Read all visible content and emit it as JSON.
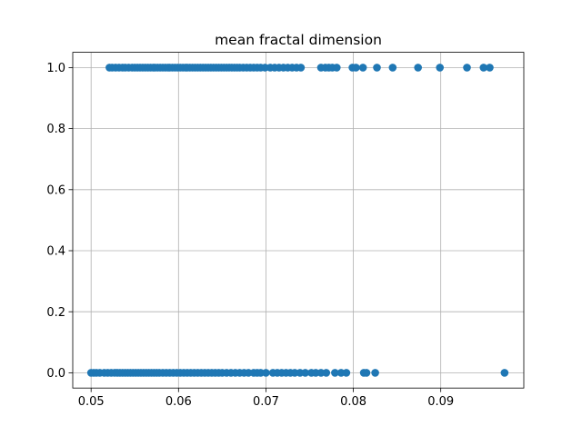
{
  "chart_data": {
    "type": "scatter",
    "title": "mean fractal dimension",
    "xlabel": "",
    "ylabel": "",
    "xlim": [
      0.0479,
      0.0995
    ],
    "ylim": [
      -0.05,
      1.05
    ],
    "grid": true,
    "color": "#1f77b4",
    "x_ticks": [
      {
        "value": 0.05,
        "label": "0.05"
      },
      {
        "value": 0.06,
        "label": "0.06"
      },
      {
        "value": 0.07,
        "label": "0.07"
      },
      {
        "value": 0.08,
        "label": "0.08"
      },
      {
        "value": 0.09,
        "label": "0.09"
      }
    ],
    "y_ticks": [
      {
        "value": 0.0,
        "label": "0.0"
      },
      {
        "value": 0.2,
        "label": "0.2"
      },
      {
        "value": 0.4,
        "label": "0.4"
      },
      {
        "value": 0.6,
        "label": "0.6"
      },
      {
        "value": 0.8,
        "label": "0.8"
      },
      {
        "value": 1.0,
        "label": "1.0"
      }
    ],
    "series": [
      {
        "points": [
          [
            0.0521,
            1
          ],
          [
            0.0524,
            1
          ],
          [
            0.0528,
            1
          ],
          [
            0.0532,
            1
          ],
          [
            0.0536,
            1
          ],
          [
            0.0539,
            1
          ],
          [
            0.0543,
            1
          ],
          [
            0.0547,
            1
          ],
          [
            0.055,
            1
          ],
          [
            0.0553,
            1
          ],
          [
            0.0556,
            1
          ],
          [
            0.0559,
            1
          ],
          [
            0.0562,
            1
          ],
          [
            0.0565,
            1
          ],
          [
            0.0568,
            1
          ],
          [
            0.0571,
            1
          ],
          [
            0.0573,
            1
          ],
          [
            0.0576,
            1
          ],
          [
            0.0579,
            1
          ],
          [
            0.0582,
            1
          ],
          [
            0.0585,
            1
          ],
          [
            0.0588,
            1
          ],
          [
            0.059,
            1
          ],
          [
            0.0593,
            1
          ],
          [
            0.0596,
            1
          ],
          [
            0.0599,
            1
          ],
          [
            0.0602,
            1
          ],
          [
            0.0605,
            1
          ],
          [
            0.0608,
            1
          ],
          [
            0.061,
            1
          ],
          [
            0.0613,
            1
          ],
          [
            0.0616,
            1
          ],
          [
            0.0619,
            1
          ],
          [
            0.0622,
            1
          ],
          [
            0.0625,
            1
          ],
          [
            0.0628,
            1
          ],
          [
            0.0631,
            1
          ],
          [
            0.0634,
            1
          ],
          [
            0.0637,
            1
          ],
          [
            0.064,
            1
          ],
          [
            0.0643,
            1
          ],
          [
            0.0646,
            1
          ],
          [
            0.0649,
            1
          ],
          [
            0.0652,
            1
          ],
          [
            0.0655,
            1
          ],
          [
            0.0658,
            1
          ],
          [
            0.0661,
            1
          ],
          [
            0.0664,
            1
          ],
          [
            0.0667,
            1
          ],
          [
            0.067,
            1
          ],
          [
            0.0674,
            1
          ],
          [
            0.0678,
            1
          ],
          [
            0.0682,
            1
          ],
          [
            0.0686,
            1
          ],
          [
            0.069,
            1
          ],
          [
            0.0694,
            1
          ],
          [
            0.0699,
            1
          ],
          [
            0.0705,
            1
          ],
          [
            0.071,
            1
          ],
          [
            0.0715,
            1
          ],
          [
            0.072,
            1
          ],
          [
            0.0725,
            1
          ],
          [
            0.073,
            1
          ],
          [
            0.0735,
            1
          ],
          [
            0.074,
            1
          ],
          [
            0.0763,
            1
          ],
          [
            0.0768,
            1
          ],
          [
            0.0772,
            1
          ],
          [
            0.0776,
            1
          ],
          [
            0.0781,
            1
          ],
          [
            0.0799,
            1
          ],
          [
            0.0803,
            1
          ],
          [
            0.0811,
            1
          ],
          [
            0.0827,
            1
          ],
          [
            0.0845,
            1
          ],
          [
            0.0874,
            1
          ],
          [
            0.0899,
            1
          ],
          [
            0.093,
            1
          ],
          [
            0.0949,
            1
          ],
          [
            0.0956,
            1
          ],
          [
            0.05,
            0
          ],
          [
            0.0503,
            0
          ],
          [
            0.0506,
            0
          ],
          [
            0.051,
            0
          ],
          [
            0.0515,
            0
          ],
          [
            0.0519,
            0
          ],
          [
            0.0523,
            0
          ],
          [
            0.0527,
            0
          ],
          [
            0.053,
            0
          ],
          [
            0.0533,
            0
          ],
          [
            0.0536,
            0
          ],
          [
            0.0539,
            0
          ],
          [
            0.0542,
            0
          ],
          [
            0.0545,
            0
          ],
          [
            0.0548,
            0
          ],
          [
            0.0551,
            0
          ],
          [
            0.0554,
            0
          ],
          [
            0.0557,
            0
          ],
          [
            0.056,
            0
          ],
          [
            0.0563,
            0
          ],
          [
            0.0566,
            0
          ],
          [
            0.0569,
            0
          ],
          [
            0.0572,
            0
          ],
          [
            0.0575,
            0
          ],
          [
            0.0578,
            0
          ],
          [
            0.0582,
            0
          ],
          [
            0.0586,
            0
          ],
          [
            0.059,
            0
          ],
          [
            0.0594,
            0
          ],
          [
            0.0598,
            0
          ],
          [
            0.0602,
            0
          ],
          [
            0.0606,
            0
          ],
          [
            0.061,
            0
          ],
          [
            0.0614,
            0
          ],
          [
            0.0618,
            0
          ],
          [
            0.0622,
            0
          ],
          [
            0.0626,
            0
          ],
          [
            0.063,
            0
          ],
          [
            0.0634,
            0
          ],
          [
            0.0638,
            0
          ],
          [
            0.0642,
            0
          ],
          [
            0.0646,
            0
          ],
          [
            0.065,
            0
          ],
          [
            0.0655,
            0
          ],
          [
            0.066,
            0
          ],
          [
            0.0665,
            0
          ],
          [
            0.067,
            0
          ],
          [
            0.0675,
            0
          ],
          [
            0.068,
            0
          ],
          [
            0.0686,
            0
          ],
          [
            0.069,
            0
          ],
          [
            0.0694,
            0
          ],
          [
            0.07,
            0
          ],
          [
            0.0708,
            0
          ],
          [
            0.0713,
            0
          ],
          [
            0.0718,
            0
          ],
          [
            0.0723,
            0
          ],
          [
            0.0728,
            0
          ],
          [
            0.0733,
            0
          ],
          [
            0.0739,
            0
          ],
          [
            0.0745,
            0
          ],
          [
            0.0752,
            0
          ],
          [
            0.0757,
            0
          ],
          [
            0.0763,
            0
          ],
          [
            0.0769,
            0
          ],
          [
            0.0779,
            0
          ],
          [
            0.0786,
            0
          ],
          [
            0.0792,
            0
          ],
          [
            0.0812,
            0
          ],
          [
            0.0815,
            0
          ],
          [
            0.0825,
            0
          ],
          [
            0.0973,
            0
          ]
        ]
      }
    ]
  }
}
